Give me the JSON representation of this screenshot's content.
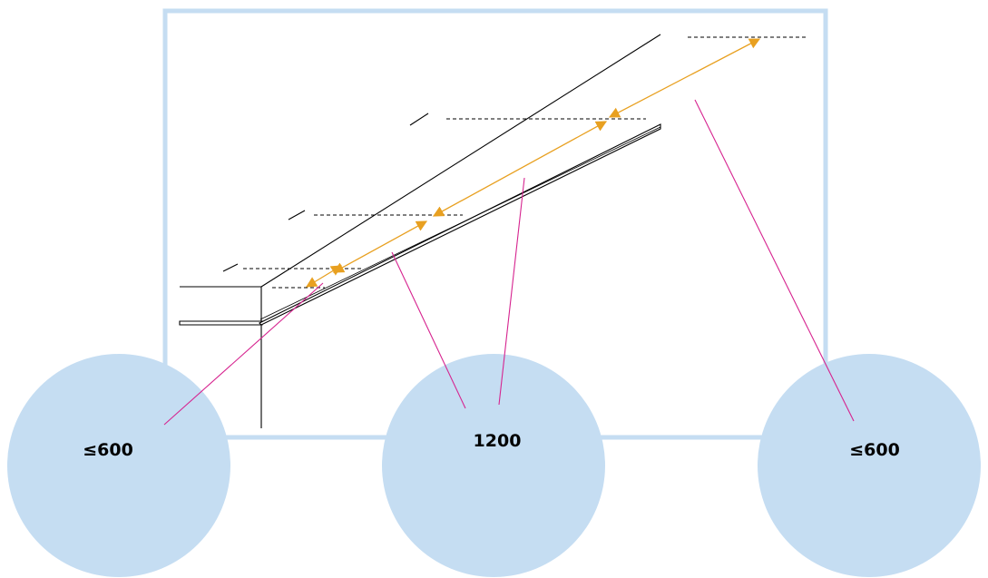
{
  "colors": {
    "frame": "#c5ddf2",
    "callout_fill": "#c5ddf2",
    "dimension_arrow": "#e8a020",
    "leader_line": "#d6238f",
    "drawing_line": "#000000"
  },
  "callouts": [
    {
      "id": "left",
      "label": "≤600"
    },
    {
      "id": "center",
      "label": "1200"
    },
    {
      "id": "right",
      "label": "≤600"
    }
  ]
}
